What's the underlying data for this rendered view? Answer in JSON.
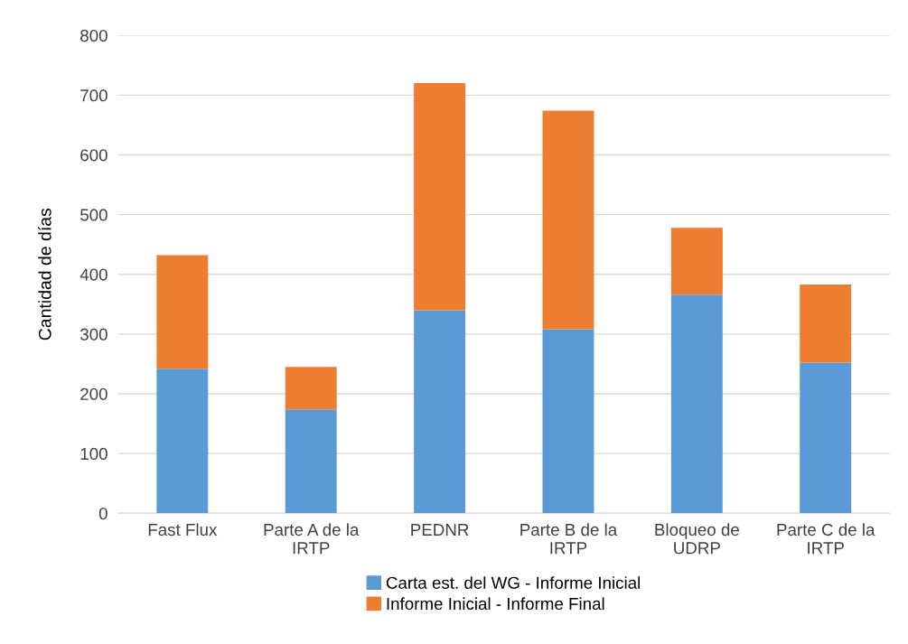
{
  "chart_data": {
    "type": "bar",
    "stacked": true,
    "ylabel": "Cantidad de días",
    "categories": [
      "Fast Flux",
      "Parte A de la\nIRTP",
      "PEDNR",
      "Parte B de la\nIRTP",
      "Bloqueo de\nUDRP",
      "Parte C de la\nIRTP"
    ],
    "series": [
      {
        "name": "Carta est. del WG - Informe Inicial",
        "color": "#5b9bd5",
        "values": [
          242,
          174,
          340,
          308,
          366,
          252
        ]
      },
      {
        "name": "Informe Inicial - Informe Final",
        "color": "#ed7d31",
        "values": [
          190,
          71,
          380,
          366,
          112,
          131
        ]
      }
    ],
    "ylim": [
      0,
      800
    ],
    "yticks": [
      0,
      100,
      200,
      300,
      400,
      500,
      600,
      700,
      800
    ],
    "grid": "y",
    "legend": "bottom"
  }
}
